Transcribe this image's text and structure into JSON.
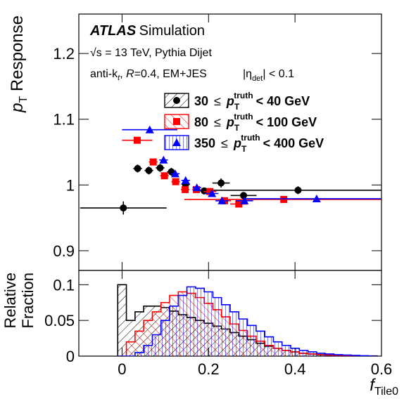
{
  "chart_data": [
    {
      "type": "scatter",
      "annotations": [
        [
          "ATLAS",
          "Simulation"
        ],
        [
          "√s = 13 TeV, Pythia Dijet"
        ],
        [
          "anti-k",
          "t",
          ", ",
          "R",
          "=0.4, EM+JES"
        ],
        [
          "|η",
          "det",
          "| < 0.1"
        ]
      ],
      "ylabel": [
        "p",
        "T",
        " Response"
      ],
      "xlim": [
        -0.1,
        0.6
      ],
      "xticks": [
        0,
        0.2,
        0.4,
        0.6
      ],
      "ylim": [
        0.87,
        1.26
      ],
      "yticks": [
        0.9,
        1,
        1.1,
        1.2
      ],
      "series": [
        {
          "name": [
            "30",
            "≤",
            "p",
            "T",
            "truth",
            "< 40 GeV"
          ],
          "color": "#000000",
          "marker": "circle",
          "x": [
            0.003,
            0.036,
            0.062,
            0.088,
            0.114,
            0.147,
            0.19,
            0.229,
            0.281,
            0.407
          ],
          "values": [
            0.965,
            1.025,
            1.022,
            1.026,
            1.02,
            1.001,
            0.991,
            1.003,
            0.984,
            0.992
          ],
          "xerr": [
            0.1,
            0.01,
            0.01,
            0.01,
            0.01,
            0.01,
            0.015,
            0.02,
            0.03,
            0.2
          ],
          "yerr": [
            0.01,
            0.006,
            0.006,
            0.006,
            0.006,
            0.005,
            0.004,
            0.007,
            0.005,
            0.006
          ]
        },
        {
          "name": [
            "80",
            "≤",
            "p",
            "T",
            "truth",
            "< 100 GeV"
          ],
          "color": "#ff0000",
          "marker": "square",
          "x": [
            0.035,
            0.072,
            0.098,
            0.124,
            0.146,
            0.172,
            0.203,
            0.237,
            0.27,
            0.374
          ],
          "values": [
            1.068,
            1.035,
            1.014,
            1.005,
            0.993,
            0.993,
            0.99,
            0.976,
            0.971,
            0.978
          ],
          "xerr": [
            0.035,
            0.01,
            0.01,
            0.01,
            0.01,
            0.01,
            0.015,
            0.015,
            0.02,
            0.23
          ],
          "yerr": [
            0.002,
            0.002,
            0.002,
            0.002,
            0.002,
            0.002,
            0.002,
            0.002,
            0.003,
            0.002
          ]
        },
        {
          "name": [
            "350",
            "≤",
            "p",
            "T",
            "truth",
            "< 400 GeV"
          ],
          "color": "#0000ff",
          "marker": "triangle",
          "x": [
            0.064,
            0.096,
            0.123,
            0.147,
            0.173,
            0.208,
            0.231,
            0.283,
            0.45
          ],
          "values": [
            1.084,
            1.038,
            1.017,
            1.007,
            0.996,
            0.987,
            0.976,
            0.976,
            0.979
          ],
          "xerr": [
            0.064,
            0.01,
            0.01,
            0.01,
            0.01,
            0.015,
            0.015,
            0.02,
            0.17
          ],
          "yerr": [
            0.002,
            0.002,
            0.002,
            0.002,
            0.002,
            0.002,
            0.002,
            0.002,
            0.002
          ]
        }
      ]
    },
    {
      "type": "histogram",
      "ylabel": [
        "Relative",
        "Fraction"
      ],
      "xlabel": [
        "f",
        "Tile0"
      ],
      "xlim": [
        -0.1,
        0.6
      ],
      "xticks": [
        0,
        0.2,
        0.4,
        0.6
      ],
      "ylim": [
        0,
        0.12
      ],
      "yticks": [
        0,
        0.05,
        0.1
      ],
      "bins": [
        -0.01,
        0.01,
        0.03,
        0.05,
        0.07,
        0.09,
        0.11,
        0.13,
        0.15,
        0.17,
        0.19,
        0.21,
        0.23,
        0.25,
        0.27,
        0.29,
        0.31,
        0.33,
        0.35,
        0.37,
        0.39,
        0.41,
        0.43,
        0.45,
        0.47,
        0.49,
        0.51,
        0.53,
        0.55,
        0.57,
        0.59
      ],
      "series": [
        {
          "color": "#000000",
          "hatch": "/",
          "values": [
            0.1,
            0.05,
            0.062,
            0.07,
            0.07,
            0.068,
            0.063,
            0.058,
            0.054,
            0.05,
            0.046,
            0.042,
            0.038,
            0.033,
            0.028,
            0.023,
            0.018,
            0.014,
            0.011,
            0.008,
            0.006,
            0.004,
            0.003,
            0.002,
            0.0015,
            0.001,
            0.0007,
            0.0005,
            0.0003,
            0.0002
          ]
        },
        {
          "color": "#ff0000",
          "hatch": "\\",
          "values": [
            0,
            0.02,
            0.035,
            0.05,
            0.062,
            0.075,
            0.085,
            0.09,
            0.088,
            0.082,
            0.074,
            0.065,
            0.055,
            0.045,
            0.036,
            0.028,
            0.021,
            0.015,
            0.011,
            0.008,
            0.006,
            0.004,
            0.003,
            0.002,
            0.0015,
            0.001,
            0.0007,
            0.0005,
            0.0003,
            0.0002
          ]
        },
        {
          "color": "#0000ff",
          "hatch": "|",
          "values": [
            0,
            0,
            0.005,
            0.015,
            0.03,
            0.05,
            0.07,
            0.085,
            0.097,
            0.095,
            0.09,
            0.082,
            0.072,
            0.062,
            0.052,
            0.043,
            0.035,
            0.027,
            0.02,
            0.015,
            0.011,
            0.008,
            0.006,
            0.004,
            0.003,
            0.002,
            0.0015,
            0.001,
            0.0006,
            0.0003
          ]
        }
      ]
    }
  ]
}
